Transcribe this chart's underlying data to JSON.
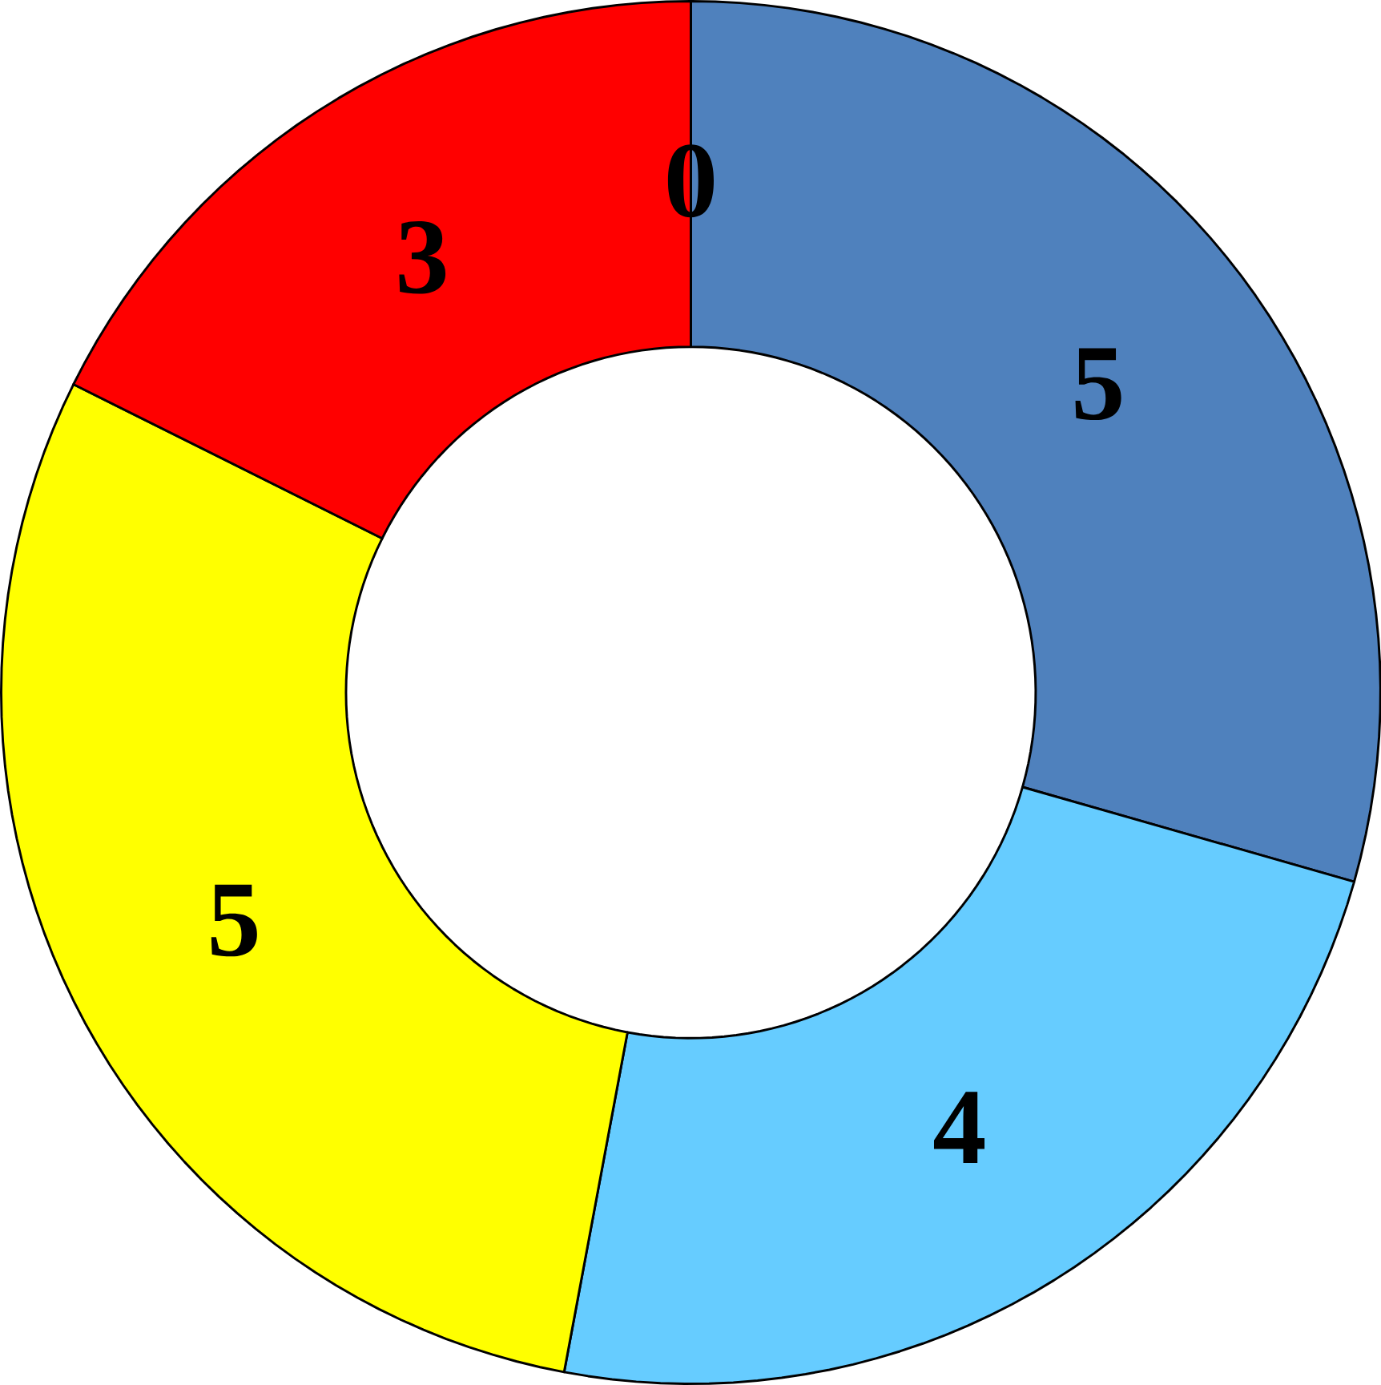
{
  "chart_data": {
    "type": "donut",
    "categories": [
      null,
      null,
      null,
      null,
      null
    ],
    "values": [
      0,
      5,
      4,
      5,
      3
    ],
    "colors": [
      "#9bbb59",
      "#4f81bd",
      "#66ccff",
      "#ffff00",
      "#ff0000"
    ],
    "value_labels": [
      "0",
      "5",
      "4",
      "5",
      "3"
    ]
  }
}
